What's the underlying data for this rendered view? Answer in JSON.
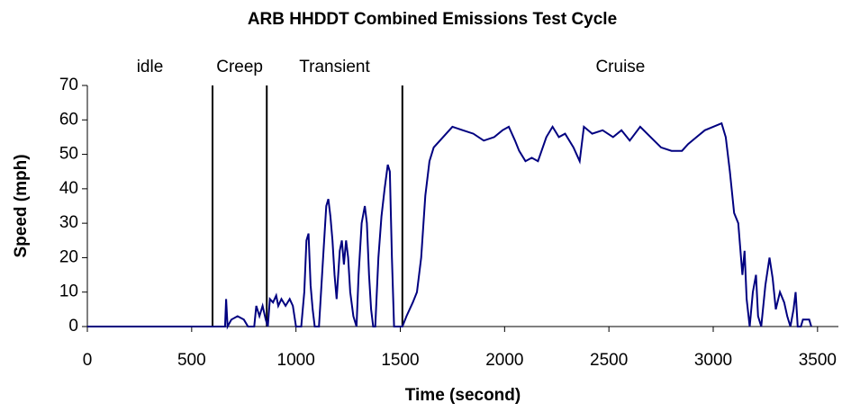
{
  "chart_data": {
    "type": "line",
    "title": "ARB HHDDT Combined Emissions Test Cycle",
    "x_label": "Time (second)",
    "y_label": "Speed (mph)",
    "xlim": [
      0,
      3600
    ],
    "ylim": [
      0,
      70
    ],
    "xticks": [
      0,
      500,
      1000,
      1500,
      2000,
      2500,
      3000,
      3500
    ],
    "yticks": [
      0,
      10,
      20,
      30,
      40,
      50,
      60,
      70
    ],
    "phase_labels": [
      "idle",
      "Creep",
      "Transient",
      "Cruise"
    ],
    "phase_boundaries": [
      600,
      860,
      1510
    ],
    "x": [
      0,
      660,
      665,
      672,
      690,
      720,
      750,
      770,
      800,
      810,
      825,
      840,
      855,
      865,
      875,
      890,
      905,
      915,
      930,
      950,
      970,
      985,
      1000,
      1025,
      1040,
      1050,
      1060,
      1070,
      1080,
      1090,
      1110,
      1130,
      1145,
      1155,
      1165,
      1175,
      1185,
      1195,
      1210,
      1220,
      1230,
      1240,
      1250,
      1260,
      1275,
      1290,
      1300,
      1315,
      1330,
      1340,
      1350,
      1360,
      1370,
      1380,
      1395,
      1410,
      1425,
      1440,
      1450,
      1460,
      1470,
      1490,
      1510,
      1530,
      1560,
      1580,
      1600,
      1620,
      1640,
      1660,
      1690,
      1720,
      1750,
      1800,
      1850,
      1900,
      1950,
      1990,
      2020,
      2050,
      2070,
      2100,
      2130,
      2160,
      2200,
      2230,
      2260,
      2290,
      2330,
      2360,
      2380,
      2420,
      2470,
      2520,
      2560,
      2600,
      2650,
      2700,
      2750,
      2800,
      2850,
      2880,
      2920,
      2960,
      3000,
      3040,
      3060,
      3080,
      3100,
      3120,
      3140,
      3150,
      3160,
      3175,
      3190,
      3205,
      3215,
      3230,
      3250,
      3270,
      3285,
      3300,
      3320,
      3340,
      3355,
      3370,
      3385,
      3395,
      3405,
      3420,
      3430,
      3460,
      3470
    ],
    "series": [
      {
        "name": "Speed",
        "color": "#000080",
        "values": [
          0,
          0,
          8,
          0,
          2,
          3,
          2,
          0,
          0,
          6,
          3,
          6,
          2,
          0,
          8,
          7,
          9,
          6,
          8,
          6,
          8,
          6,
          0,
          0,
          10,
          25,
          27,
          12,
          5,
          0,
          0,
          20,
          35,
          37,
          32,
          25,
          15,
          8,
          22,
          25,
          18,
          25,
          20,
          10,
          3,
          0,
          15,
          30,
          35,
          30,
          15,
          5,
          0,
          0,
          20,
          32,
          40,
          47,
          45,
          20,
          0,
          0,
          0,
          3,
          7,
          10,
          20,
          38,
          48,
          52,
          54,
          56,
          58,
          57,
          56,
          54,
          55,
          57,
          58,
          54,
          51,
          48,
          49,
          48,
          55,
          58,
          55,
          56,
          52,
          48,
          58,
          56,
          57,
          55,
          57,
          54,
          58,
          55,
          52,
          51,
          51,
          53,
          55,
          57,
          58,
          59,
          55,
          45,
          33,
          30,
          15,
          22,
          8,
          0,
          10,
          15,
          3,
          0,
          12,
          20,
          14,
          5,
          10,
          7,
          3,
          0,
          5,
          10,
          0,
          0,
          2,
          2,
          0
        ]
      }
    ]
  }
}
